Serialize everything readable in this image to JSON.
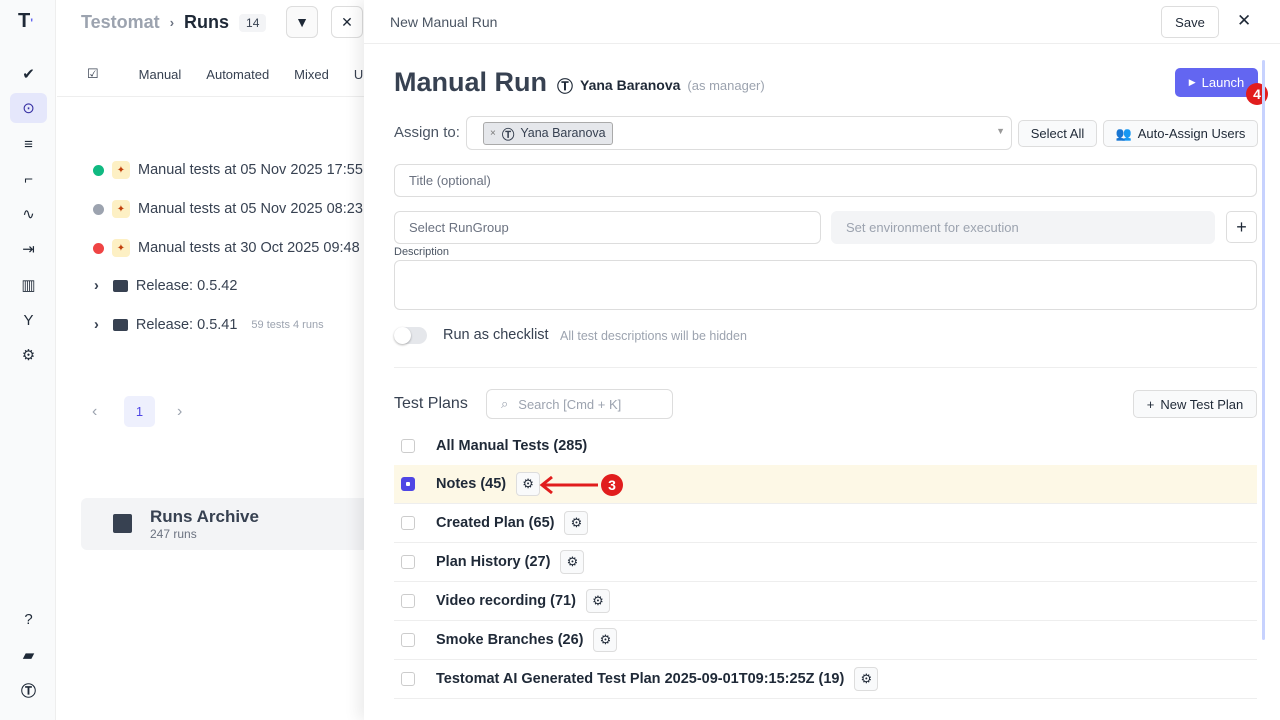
{
  "sidebar": {
    "items": [
      "check-icon",
      "runs-icon",
      "plans-icon",
      "steps-icon",
      "pulse-icon",
      "import-icon",
      "analytics-icon",
      "branches-icon",
      "settings-icon"
    ],
    "bottom": [
      "help-icon",
      "projects-icon",
      "profile-icon"
    ]
  },
  "left": {
    "breadcrumb_root": "Testomat",
    "breadcrumb_sep": "›",
    "title": "Runs",
    "count": "14",
    "tabs": [
      "Manual",
      "Automated",
      "Mixed",
      "Un"
    ],
    "runs": [
      {
        "label": "Manual tests at 05 Nov 2025 17:55",
        "status": "passed",
        "color": "#10b981"
      },
      {
        "label": "Manual tests at 05 Nov 2025 08:23",
        "status": "in-progress",
        "color": "#9ca3af"
      },
      {
        "label": "Manual tests at 30 Oct 2025 09:48",
        "status": "failed",
        "color": "#ef4444"
      }
    ],
    "groups": [
      {
        "label": "Release: 0.5.42",
        "meta": ""
      },
      {
        "label": "Release: 0.5.41",
        "meta": "59 tests  4 runs"
      }
    ],
    "page": "1",
    "archive": {
      "title": "Runs Archive",
      "count": "247 runs"
    }
  },
  "drawer": {
    "header": "New Manual Run",
    "save": "Save",
    "title": "Manual Run",
    "user": "Yana Baranova",
    "role": "(as manager)",
    "launch": "Launch",
    "assign_label": "Assign to:",
    "assignee": "Yana Baranova",
    "select_all": "Select All",
    "auto_assign": "Auto-Assign Users",
    "title_placeholder": "Title (optional)",
    "rungroup_placeholder": "Select RunGroup",
    "env_placeholder": "Set environment for execution",
    "description_label": "Description",
    "checklist_label": "Run as checklist",
    "checklist_hint": "All test descriptions will be hidden",
    "checklist_on": false,
    "plans_title": "Test Plans",
    "search_placeholder": "Search [Cmd + K]",
    "new_plan": "New Test Plan",
    "plans": [
      {
        "label": "All Manual Tests (285)",
        "checked": false,
        "gear": false
      },
      {
        "label": "Notes (45)",
        "checked": true,
        "gear": true
      },
      {
        "label": "Created Plan (65)",
        "checked": false,
        "gear": true
      },
      {
        "label": "Plan History (27)",
        "checked": false,
        "gear": true
      },
      {
        "label": "Video recording (71)",
        "checked": false,
        "gear": true
      },
      {
        "label": "Smoke Branches (26)",
        "checked": false,
        "gear": true
      },
      {
        "label": "Testomat AI Generated Test Plan 2025-09-01T09:15:25Z (19)",
        "checked": false,
        "gear": true
      }
    ]
  },
  "annotations": {
    "step3": "3",
    "step4": "4",
    "color": "#e11d1d"
  },
  "colors": {
    "accent": "#6366f1",
    "selected_row": "#fdf8e6"
  }
}
